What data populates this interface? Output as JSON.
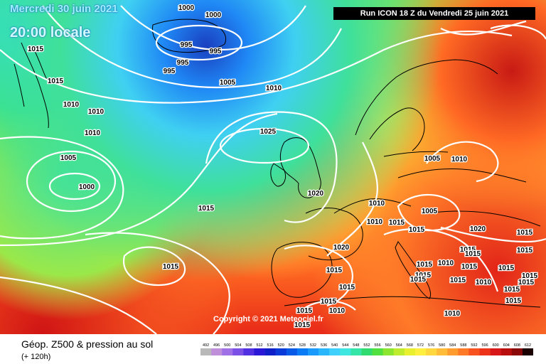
{
  "map": {
    "date_line": "Mercredi 30 juin 2021",
    "time_line": "20:00 locale",
    "run_line": "Run ICON 18 Z du Vendredi 25 juin 2021",
    "copyright": "Copyright © 2021 Meteociel.fr",
    "pressure_labels": [
      "1000",
      "1000",
      "995",
      "995",
      "995",
      "995",
      "1015",
      "1015",
      "1010",
      "1010",
      "1010",
      "1005",
      "1000",
      "1005",
      "1010",
      "1025",
      "1020",
      "1015",
      "1015",
      "1005",
      "1010",
      "1010",
      "1010",
      "1015",
      "1015",
      "1005",
      "1020",
      "1015",
      "1015",
      "1015",
      "1015",
      "1015",
      "1010",
      "1020",
      "1015",
      "1015",
      "1015",
      "1015",
      "1015",
      "1015",
      "1010",
      "1015",
      "1015",
      "1015",
      "1015",
      "1010",
      "1015",
      "1015",
      "1015",
      "1010",
      "1015"
    ],
    "colors": {
      "low_center": "#1a3fbf",
      "high_center": "#f06a14",
      "land_outline": "#000000",
      "isobars": "#ffffff"
    }
  },
  "legend": {
    "title": "Géop. Z500 & pression au sol",
    "subtitle": "(+ 120h)",
    "values": [
      "492",
      "496",
      "500",
      "504",
      "508",
      "512",
      "516",
      "520",
      "524",
      "528",
      "532",
      "536",
      "540",
      "544",
      "548",
      "552",
      "556",
      "560",
      "564",
      "568",
      "572",
      "576",
      "580",
      "584",
      "588",
      "592",
      "596",
      "600",
      "604",
      "608",
      "612"
    ],
    "colors": [
      "#b9b9b9",
      "#bf8fd9",
      "#a070e6",
      "#7a50e6",
      "#5030e0",
      "#2a18d6",
      "#1020c8",
      "#0a3ad8",
      "#0a5ae8",
      "#0a7af5",
      "#1a9afa",
      "#2ab6fb",
      "#3fd0fb",
      "#40e6e0",
      "#35e6a8",
      "#30dc70",
      "#50e040",
      "#8ce630",
      "#c0ec30",
      "#e8f030",
      "#fff040",
      "#ffd840",
      "#ffbc38",
      "#ff9c30",
      "#ff7a28",
      "#f85220",
      "#ec3218",
      "#d81818",
      "#b80e0e",
      "#8a0808",
      "#1a0000"
    ]
  }
}
